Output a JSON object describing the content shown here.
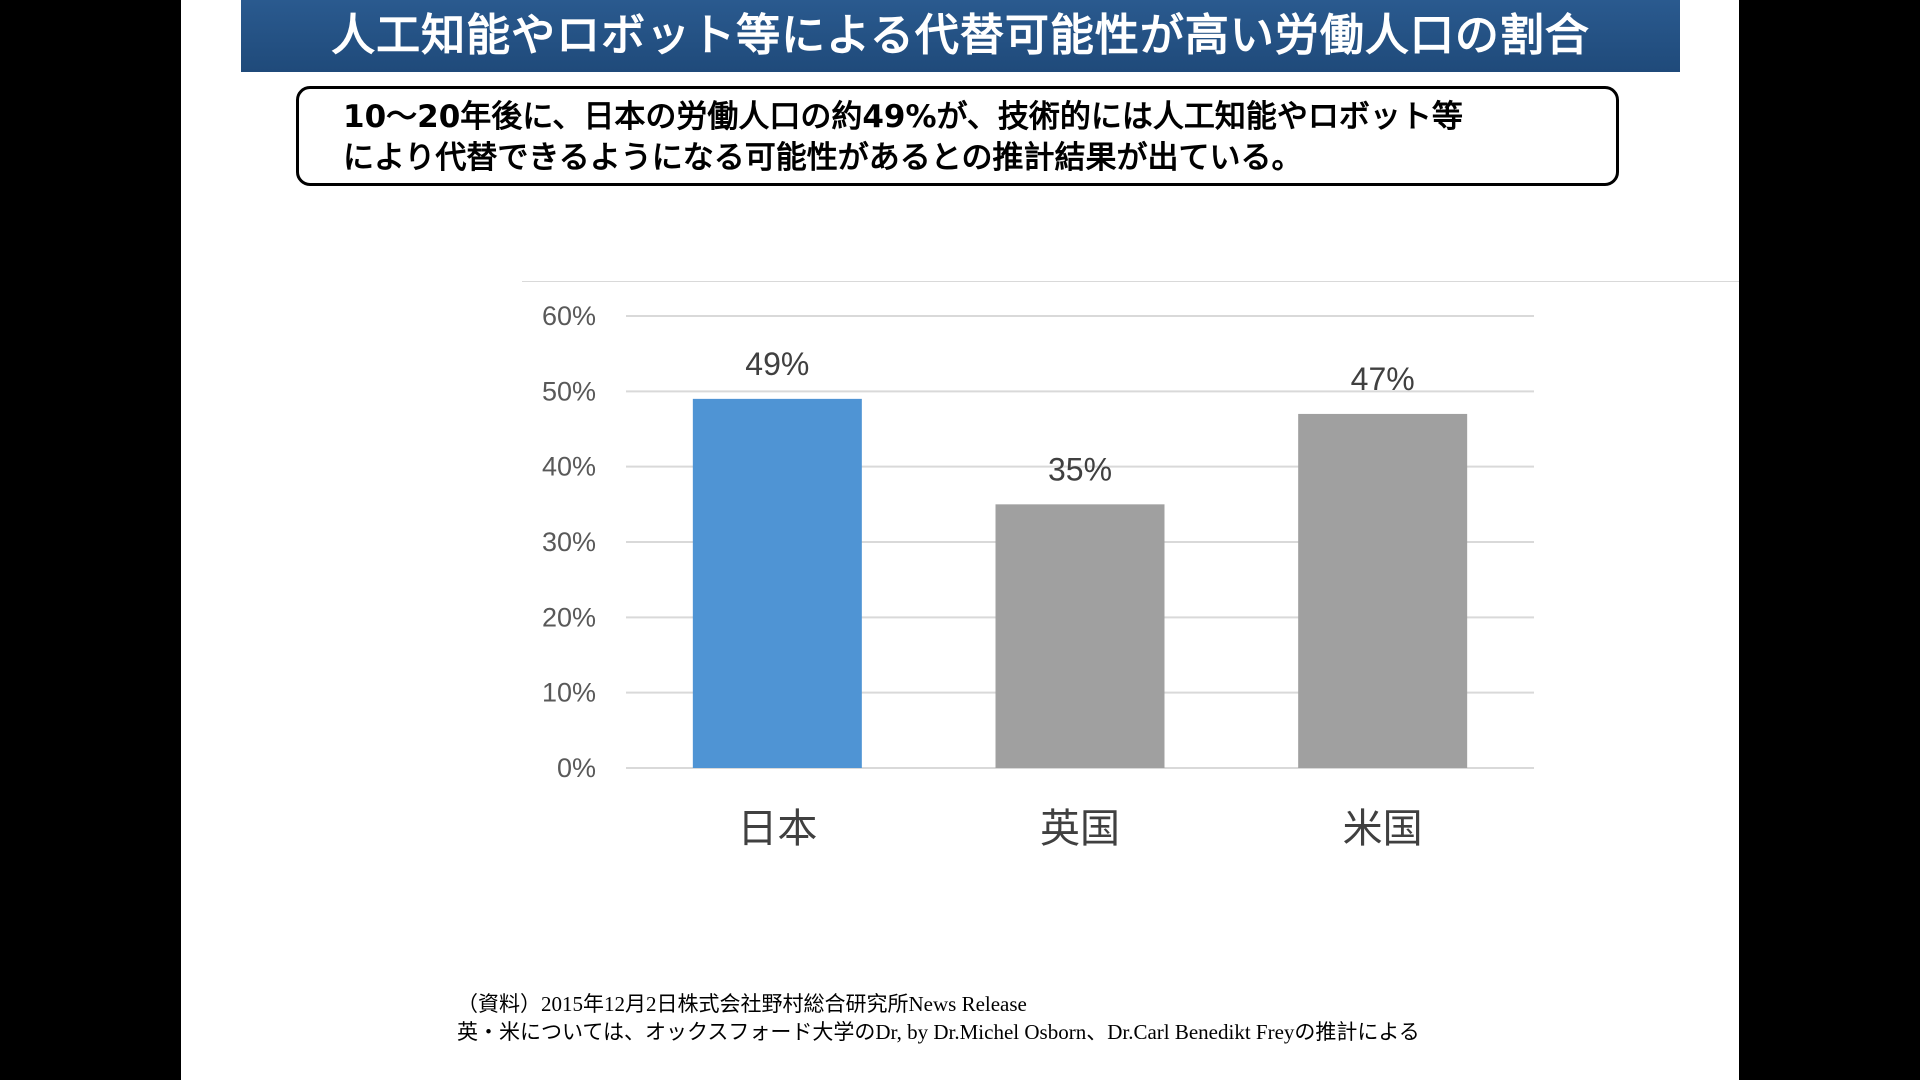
{
  "title": "人工知能やロボット等による代替可能性が高い労働人口の割合",
  "summary": {
    "line1": "10～20年後に、日本の労働人口の約49%が、技術的には人工知能やロボット等",
    "line2": "により代替できるようになる可能性があるとの推計結果が出ている。"
  },
  "chart_data": {
    "type": "bar",
    "categories": [
      "日本",
      "英国",
      "米国"
    ],
    "values": [
      49,
      35,
      47
    ],
    "data_labels": [
      "49%",
      "35%",
      "47%"
    ],
    "ylim": [
      0,
      60
    ],
    "yticks": [
      0,
      10,
      20,
      30,
      40,
      50,
      60
    ],
    "ytick_labels": [
      "0%",
      "10%",
      "20%",
      "30%",
      "40%",
      "50%",
      "60%"
    ],
    "bar_colors": [
      "#4f94d4",
      "#a0a0a0",
      "#a0a0a0"
    ],
    "grid": true,
    "legend": "none"
  },
  "source": {
    "line1": "（資料）2015年12月2日株式会社野村総合研究所News Release",
    "line2": "英・米については、オックスフォード大学のDr, by Dr.Michel Osborn、Dr.Carl Benedikt Freyの推計による"
  },
  "colors": {
    "title_bar": "#1f4a7a",
    "grid": "#d9d9d9"
  }
}
